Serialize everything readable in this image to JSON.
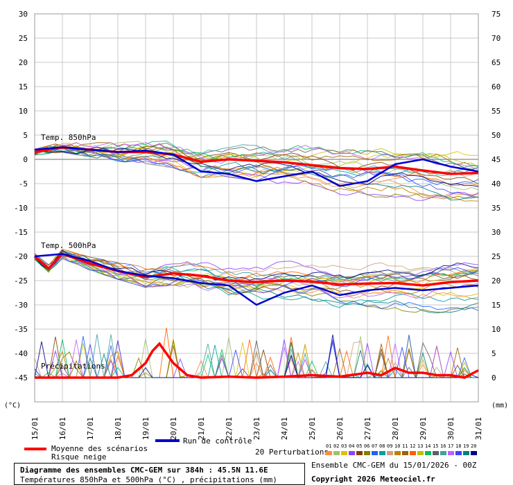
{
  "chart_data": {
    "type": "line",
    "x_ticks": [
      "15/01",
      "16/01",
      "17/01",
      "18/01",
      "19/01",
      "20/01",
      "21/01",
      "22/01",
      "23/01",
      "24/01",
      "25/01",
      "26/01",
      "27/01",
      "28/01",
      "29/01",
      "30/01",
      "31/01"
    ],
    "left_axis": {
      "unit": "(°C)",
      "ticks": [
        30,
        25,
        20,
        15,
        10,
        5,
        0,
        -5,
        -10,
        -15,
        -20,
        -25,
        -30,
        -35,
        -40,
        -45
      ],
      "range": [
        -50,
        30
      ]
    },
    "right_axis": {
      "unit": "(mm)",
      "ticks": [
        75,
        70,
        65,
        60,
        55,
        50,
        45,
        40,
        35,
        30,
        25,
        20,
        15,
        10,
        5,
        0
      ]
    },
    "labels": {
      "t850": "Temp. 850hPa",
      "t500": "Temp. 500hPa",
      "precip": "Précipitations"
    },
    "series": [
      {
        "name": "Moyenne des scénarios",
        "color": "#ff0000",
        "group": "t850",
        "x": [
          0,
          1,
          2,
          3,
          4,
          5,
          6,
          7,
          8,
          9,
          10,
          11,
          12,
          13,
          14,
          15,
          16
        ],
        "values": [
          1.5,
          2.5,
          2.0,
          1.5,
          1.5,
          1.0,
          -0.5,
          0.0,
          -0.3,
          -0.6,
          -1.2,
          -1.8,
          -2.0,
          -1.5,
          -2.3,
          -3.0,
          -2.8
        ]
      },
      {
        "name": "Run de contrôle",
        "color": "#0000cc",
        "group": "t850",
        "x": [
          0,
          1,
          2,
          3,
          4,
          5,
          6,
          7,
          8,
          9,
          10,
          11,
          12,
          13,
          14,
          15,
          16
        ],
        "values": [
          2.0,
          2.5,
          2.0,
          1.5,
          1.8,
          1.0,
          -2.5,
          -3.0,
          -4.5,
          -3.5,
          -2.5,
          -5.5,
          -4.5,
          -1.0,
          0.0,
          -1.5,
          -2.5
        ]
      },
      {
        "name": "Moyenne des scénarios",
        "color": "#ff0000",
        "group": "t500",
        "x": [
          0,
          0.5,
          1,
          1.5,
          2,
          3,
          4,
          5,
          6,
          7,
          8,
          9,
          10,
          11,
          12,
          13,
          14,
          15,
          16
        ],
        "values": [
          -20,
          -22.5,
          -19.5,
          -20.5,
          -21.5,
          -23.0,
          -24.3,
          -23.5,
          -24.0,
          -25.0,
          -25.3,
          -25.0,
          -25.2,
          -25.8,
          -25.6,
          -25.5,
          -26.0,
          -25.3,
          -25.0
        ]
      },
      {
        "name": "Run de contrôle",
        "color": "#0000cc",
        "group": "t500",
        "x": [
          0,
          1,
          2,
          3,
          4,
          5,
          6,
          7,
          8,
          9,
          10,
          11,
          12,
          13,
          14,
          15,
          16
        ],
        "values": [
          -20,
          -19.5,
          -21.0,
          -23.0,
          -24.0,
          -24.5,
          -25.5,
          -26.0,
          -30.0,
          -27.5,
          -26.0,
          -28.0,
          -27.0,
          -26.5,
          -27.0,
          -26.5,
          -26.0
        ]
      },
      {
        "name": "Moyenne des scénarios",
        "color": "#ff0000",
        "group": "precip",
        "x": [
          0,
          1,
          2,
          3,
          3.5,
          4,
          4.25,
          4.5,
          4.75,
          5,
          5.5,
          6,
          7,
          8,
          9,
          10,
          11,
          12,
          12.5,
          13,
          13.5,
          14,
          14.5,
          15,
          15.5,
          16
        ],
        "values": [
          -45,
          -45,
          -45,
          -45,
          -44.5,
          -42,
          -39.5,
          -38,
          -40,
          -42,
          -44.5,
          -45,
          -44.8,
          -45,
          -44.8,
          -44.5,
          -44.8,
          -44,
          -44.5,
          -43,
          -44,
          -44,
          -44.5,
          -44.5,
          -45,
          -43.5
        ]
      }
    ]
  },
  "legend": {
    "mean": "Moyenne des scénarios",
    "snow": "Risque neige",
    "control": "Run de contrôle",
    "perturbations": "20 Perturbations",
    "pert_numbers": [
      "01",
      "02",
      "03",
      "04",
      "05",
      "06",
      "07",
      "08",
      "09",
      "10",
      "11",
      "12",
      "13",
      "14",
      "15",
      "16",
      "17",
      "18",
      "19",
      "20"
    ],
    "pert_colors": [
      "#ff8c40",
      "#a0c070",
      "#e0c000",
      "#9040ff",
      "#804000",
      "#808000",
      "#2060ff",
      "#00a0a0",
      "#d0a080",
      "#c08000",
      "#a06000",
      "#ff6000",
      "#c0c000",
      "#00c060",
      "#606060",
      "#40a0a0",
      "#c060ff",
      "#4040ff",
      "#008080",
      "#000080"
    ]
  },
  "info": {
    "title": "Diagramme des ensembles CMC-GEM sur 384h : 45.5N 11.6E",
    "subtitle": "Températures 850hPa et 500hPa (°C) , précipitations (mm)",
    "run": "Ensemble CMC-GEM du 15/01/2026 - 00Z",
    "copyright": "Copyright 2026 Meteociel.fr"
  }
}
